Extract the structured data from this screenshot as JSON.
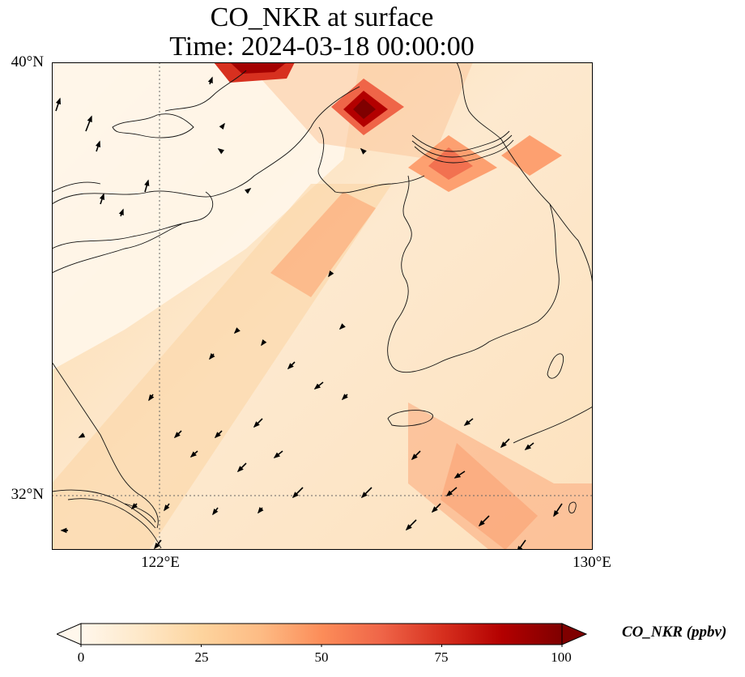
{
  "title": {
    "line1": "CO_NKR at surface",
    "line2": "Time: 2024-03-18 00:00:00"
  },
  "map": {
    "variable": "CO_NKR",
    "level": "surface",
    "lat_range": [
      30.8,
      40.0
    ],
    "lon_range": [
      119.5,
      130.0
    ],
    "yticks": [
      {
        "value": 40,
        "label": "40°N"
      },
      {
        "value": 32,
        "label": "32°N"
      }
    ],
    "xticks": [
      {
        "value": 122,
        "label": "122°E"
      },
      {
        "value": 130,
        "label": "130°E"
      }
    ],
    "gridlines": {
      "lats": [
        32
      ],
      "lons": [
        122
      ],
      "style": "dotted"
    },
    "hotspots": [
      {
        "name": "north-border-plume",
        "lon": 123.7,
        "lat": 39.95,
        "value": 90
      },
      {
        "name": "dandong-hotspot",
        "lon": 125.5,
        "lat": 39.4,
        "value": 100
      },
      {
        "name": "dmz-west-hotspot",
        "lon": 127.4,
        "lat": 38.6,
        "value": 55
      },
      {
        "name": "dmz-east-hotspot",
        "lon": 128.9,
        "lat": 38.6,
        "value": 45
      },
      {
        "name": "yellow-sea-band",
        "lon": 124.3,
        "lat": 36.6,
        "value": 45
      },
      {
        "name": "east-china-sea-band",
        "lon": 128.3,
        "lat": 31.9,
        "value": 45
      }
    ]
  },
  "colorbar": {
    "label": "CO_NKR (ppbv)",
    "min": 0,
    "max": 100,
    "ticks": [
      "0",
      "25",
      "50",
      "75",
      "100"
    ],
    "colormap": "OrRd",
    "extend": "both",
    "colors": [
      "#fff7ec",
      "#fee8c8",
      "#fdd49e",
      "#fdbb84",
      "#fc8d59",
      "#ef6548",
      "#d7301f",
      "#b30000",
      "#7f0000"
    ]
  }
}
